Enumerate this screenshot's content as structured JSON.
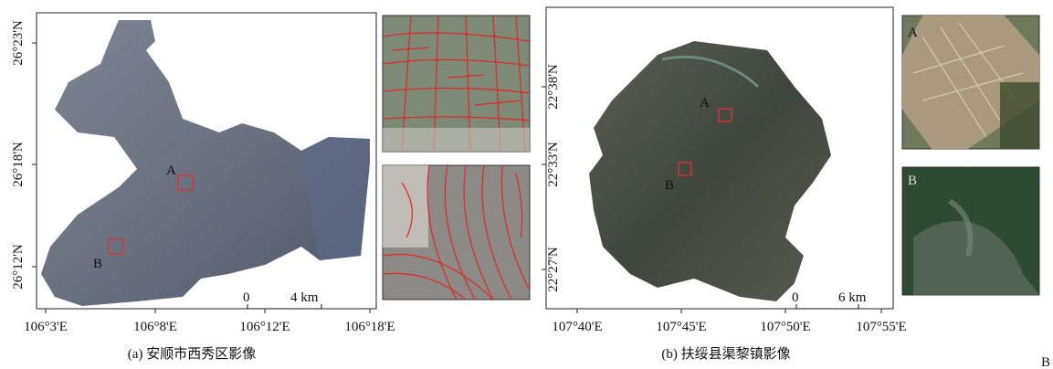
{
  "panel_a": {
    "y_labels": [
      "26°23'N",
      "26°18'N",
      "26°12'N"
    ],
    "x_labels": [
      "106°3'E",
      "106°8'E",
      "106°12'E",
      "106°18'E"
    ],
    "markers": [
      "A",
      "B"
    ],
    "scale": {
      "start": "0",
      "end": "4 km"
    },
    "caption": "(a) 安顺市西秀区影像"
  },
  "panel_b": {
    "y_labels": [
      "22°38'N",
      "22°33'N",
      "22°27'N"
    ],
    "x_labels": [
      "107°40'E",
      "107°45'E",
      "107°50'E",
      "107°55'E"
    ],
    "markers": [
      "A",
      "B"
    ],
    "scale": {
      "start": "0",
      "end": "6 km"
    },
    "inset_labels": [
      "A",
      "B"
    ],
    "caption": "(b) 扶绥县渠黎镇影像"
  },
  "corner_label": "B"
}
